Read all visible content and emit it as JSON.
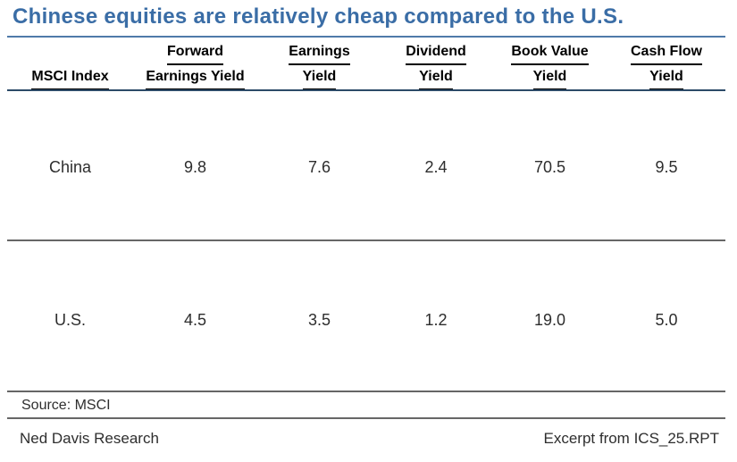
{
  "title": "Chinese equities are relatively cheap compared to the U.S.",
  "colors": {
    "title_text": "#3A6DA6",
    "title_rule": "#4F7AA9",
    "header_rule": "#2C4A68",
    "divider_gray": "#666666",
    "header_text": "#000000",
    "body_text": "#2D2D2D"
  },
  "table": {
    "columns": [
      {
        "line1": "",
        "line2": "MSCI Index"
      },
      {
        "line1": "Forward",
        "line2": "Earnings Yield"
      },
      {
        "line1": "Earnings",
        "line2": "Yield"
      },
      {
        "line1": "Dividend",
        "line2": "Yield"
      },
      {
        "line1": "Book Value",
        "line2": "Yield"
      },
      {
        "line1": "Cash Flow",
        "line2": "Yield"
      }
    ],
    "rows": [
      {
        "index": "China",
        "values": [
          "9.8",
          "7.6",
          "2.4",
          "70.5",
          "9.5"
        ]
      },
      {
        "index": "U.S.",
        "values": [
          "4.5",
          "3.5",
          "1.2",
          "19.0",
          "5.0"
        ]
      }
    ]
  },
  "footer": {
    "source": "Source: MSCI",
    "brand": "Ned Davis Research",
    "excerpt": "Excerpt from ICS_25.RPT"
  },
  "chart_data": {
    "type": "table",
    "title": "Chinese equities are relatively cheap compared to the U.S.",
    "columns": [
      "MSCI Index",
      "Forward Earnings Yield",
      "Earnings Yield",
      "Dividend Yield",
      "Book Value Yield",
      "Cash Flow Yield"
    ],
    "rows": [
      [
        "China",
        9.8,
        7.6,
        2.4,
        70.5,
        9.5
      ],
      [
        "U.S.",
        4.5,
        3.5,
        1.2,
        19.0,
        5.0
      ]
    ],
    "source": "Source: MSCI",
    "footer_left": "Ned Davis Research",
    "footer_right": "Excerpt from ICS_25.RPT"
  }
}
